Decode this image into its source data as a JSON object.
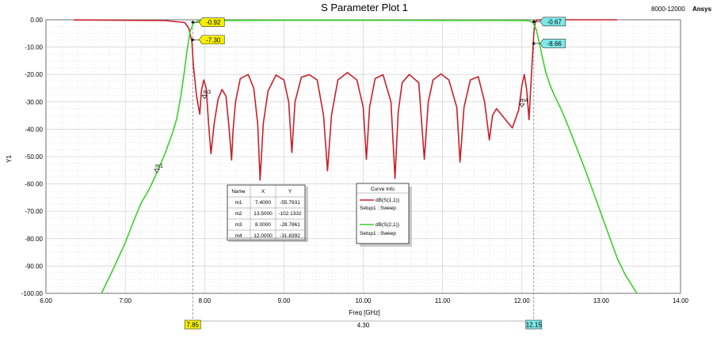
{
  "chart_data": {
    "type": "line",
    "title": "S Parameter Plot 1",
    "corner_left": "8000-12000",
    "corner_right": "Ansys",
    "xlabel": "Freq [GHz]",
    "ylabel": "Y1",
    "xlim": [
      6.0,
      14.0
    ],
    "ylim": [
      -100.0,
      0.0
    ],
    "x_ticks": [
      "6.00",
      "7.00",
      "8.00",
      "9.00",
      "10.00",
      "11.00",
      "12.00",
      "13.00",
      "14.00"
    ],
    "y_ticks": [
      "0.00",
      "-10.00",
      "-20.00",
      "-30.00",
      "-40.00",
      "-50.00",
      "-60.00",
      "-70.00",
      "-80.00",
      "-90.00",
      "-100.00"
    ],
    "grid": true,
    "series": [
      {
        "name": "dB(S(1,1))",
        "setup": "Setup1 : Sweep",
        "color": "#c8202a",
        "x": [
          6.35,
          7.5,
          7.75,
          7.8,
          7.84,
          7.86,
          7.9,
          7.94,
          7.96,
          7.99,
          8.02,
          8.05,
          8.08,
          8.12,
          8.17,
          8.22,
          8.27,
          8.31,
          8.34,
          8.36,
          8.39,
          8.45,
          8.55,
          8.62,
          8.67,
          8.7,
          8.74,
          8.8,
          8.9,
          9.0,
          9.06,
          9.1,
          9.14,
          9.22,
          9.32,
          9.42,
          9.5,
          9.55,
          9.6,
          9.68,
          9.8,
          9.92,
          10.0,
          10.04,
          10.08,
          10.15,
          10.25,
          10.35,
          10.4,
          10.44,
          10.49,
          10.58,
          10.7,
          10.77,
          10.82,
          10.88,
          10.98,
          11.08,
          11.18,
          11.22,
          11.27,
          11.35,
          11.45,
          11.53,
          11.59,
          11.63,
          11.68,
          11.78,
          11.88,
          11.96,
          12.0,
          12.03,
          12.06,
          12.09,
          12.12,
          12.15,
          12.17,
          12.19,
          12.22,
          12.28,
          12.4,
          13.2
        ],
        "values": [
          -0.05,
          -0.3,
          -1.0,
          -3.0,
          -8.0,
          -17.0,
          -28.0,
          -34.5,
          -26.0,
          -22.0,
          -25.0,
          -38.0,
          -49.0,
          -38.0,
          -29.0,
          -25.5,
          -28.0,
          -40.0,
          -51.3,
          -40.0,
          -30.0,
          -21.5,
          -20.0,
          -25.0,
          -38.0,
          -58.6,
          -38.0,
          -26.0,
          -20.2,
          -22.0,
          -30.0,
          -48.5,
          -30.0,
          -21.0,
          -20.1,
          -22.0,
          -35.0,
          -55.2,
          -35.0,
          -22.0,
          -19.3,
          -22.0,
          -32.0,
          -51.0,
          -32.0,
          -21.5,
          -20.1,
          -30.0,
          -58.0,
          -34.0,
          -23.0,
          -20.0,
          -23.0,
          -51.0,
          -30.0,
          -22.0,
          -19.8,
          -22.0,
          -32.0,
          -52.0,
          -32.0,
          -22.0,
          -20.8,
          -30.0,
          -43.9,
          -35.0,
          -32.5,
          -36.0,
          -39.5,
          -33.0,
          -24.0,
          -20.0,
          -25.5,
          -36.5,
          -20.0,
          -5.0,
          -0.6,
          -0.15,
          -0.05,
          -0.02,
          0.0,
          0.0
        ]
      },
      {
        "name": "dB(S(2,1))",
        "setup": "Setup1 : Sweep",
        "color": "#3ccf2c",
        "x": [
          6.7,
          6.85,
          7.0,
          7.1,
          7.2,
          7.3,
          7.4,
          7.5,
          7.6,
          7.65,
          7.7,
          7.74,
          7.78,
          7.82,
          7.86,
          7.92,
          8.0,
          8.1,
          9.0,
          10.0,
          11.0,
          12.0,
          12.05,
          12.1,
          12.14,
          12.18,
          12.22,
          12.26,
          12.3,
          12.35,
          12.4,
          12.5,
          12.6,
          12.7,
          12.8,
          12.9,
          13.0,
          13.1,
          13.2,
          13.3,
          13.45
        ],
        "values": [
          -100.0,
          -91.0,
          -81.5,
          -74.0,
          -67.0,
          -62.0,
          -55.8,
          -49.0,
          -41.0,
          -36.0,
          -28.0,
          -20.0,
          -11.0,
          -4.0,
          -1.2,
          -0.45,
          -0.3,
          -0.25,
          -0.2,
          -0.2,
          -0.22,
          -0.25,
          -0.3,
          -0.5,
          -1.0,
          -3.5,
          -8.5,
          -14.0,
          -19.0,
          -23.5,
          -27.0,
          -33.0,
          -40.0,
          -47.5,
          -55.0,
          -63.0,
          -71.0,
          -79.0,
          -87.0,
          -93.0,
          -100.0
        ]
      }
    ],
    "markers": [
      {
        "name": "m1",
        "x": "7.4000",
        "y": "-55.7931",
        "xv": 7.4,
        "yv": -55.79
      },
      {
        "name": "m2",
        "x": "13.5000",
        "y": "-102.1332",
        "xv": 13.5,
        "yv": -102.13
      },
      {
        "name": "m3",
        "x": "8.0000",
        "y": "-28.7861",
        "xv": 8.0,
        "yv": -28.79
      },
      {
        "name": "m4",
        "x": "12.0000",
        "y": "-31.8392",
        "xv": 12.0,
        "yv": -31.84
      }
    ],
    "marker_table_headers": [
      "Name",
      "X",
      "Y"
    ],
    "curve_info_title": "Curve Info",
    "cursors": [
      {
        "x": 7.85,
        "label": "7.85",
        "flag_top": "-0.92",
        "flag_bottom": "-7.30",
        "color": "#f4f000"
      },
      {
        "x": 12.15,
        "label": "12.15",
        "flag_top": "-0.67",
        "flag_bottom": "-8.66",
        "color": "#7ee8e8"
      }
    ],
    "delta_label": "4.30"
  }
}
